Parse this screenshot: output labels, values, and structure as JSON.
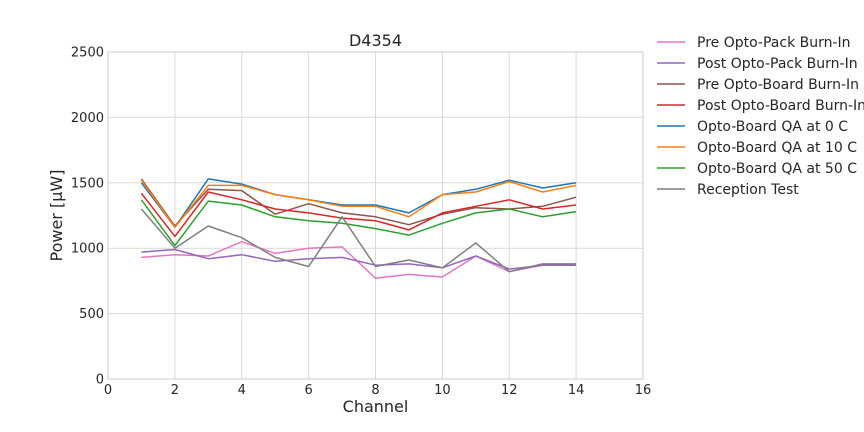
{
  "chart_data": {
    "type": "line",
    "title": "D4354",
    "xlabel": "Channel",
    "ylabel": "Power [µW]",
    "xlim": [
      0,
      16
    ],
    "ylim": [
      0,
      2500
    ],
    "xticks": [
      0,
      2,
      4,
      6,
      8,
      10,
      12,
      14,
      16
    ],
    "yticks": [
      0,
      500,
      1000,
      1500,
      2000,
      2500
    ],
    "xtick_labels": [
      "0",
      "2",
      "4",
      "6",
      "8",
      "10",
      "12",
      "14",
      "16"
    ],
    "ytick_labels": [
      "0",
      "500",
      "1000",
      "1500",
      "2000",
      "2500"
    ],
    "grid": true,
    "legend_position": "outside-right",
    "x": [
      1,
      2,
      3,
      4,
      5,
      6,
      7,
      8,
      9,
      10,
      11,
      12,
      13,
      14
    ],
    "series": [
      {
        "name": "Pre Opto-Pack Burn-In",
        "color": "#e377c2",
        "values": [
          930,
          950,
          940,
          1050,
          960,
          1000,
          1010,
          770,
          800,
          780,
          940,
          820,
          870,
          870
        ]
      },
      {
        "name": "Post Opto-Pack Burn-In",
        "color": "#9467bd",
        "values": [
          970,
          990,
          920,
          950,
          900,
          920,
          930,
          870,
          880,
          850,
          940,
          840,
          870,
          870
        ]
      },
      {
        "name": "Pre Opto-Board Burn-In",
        "color": "#8c564b",
        "values": [
          1530,
          1170,
          1450,
          1440,
          1260,
          1340,
          1270,
          1240,
          1180,
          1260,
          1310,
          1300,
          1320,
          1390
        ]
      },
      {
        "name": "Post Opto-Board Burn-In",
        "color": "#d62728",
        "values": [
          1420,
          1090,
          1430,
          1370,
          1300,
          1270,
          1230,
          1210,
          1140,
          1270,
          1320,
          1370,
          1300,
          1330
        ]
      },
      {
        "name": "Opto-Board QA at 0 C",
        "color": "#1f77b4",
        "values": [
          1500,
          1160,
          1530,
          1490,
          1410,
          1370,
          1330,
          1330,
          1270,
          1410,
          1450,
          1520,
          1460,
          1500
        ]
      },
      {
        "name": "Opto-Board QA at 10 C",
        "color": "#ff7f0e",
        "values": [
          1520,
          1160,
          1480,
          1480,
          1410,
          1370,
          1320,
          1320,
          1240,
          1410,
          1430,
          1510,
          1430,
          1480
        ]
      },
      {
        "name": "Opto-Board QA at 50 C",
        "color": "#2ca02c",
        "values": [
          1370,
          1020,
          1360,
          1330,
          1240,
          1210,
          1190,
          1150,
          1100,
          1190,
          1270,
          1300,
          1240,
          1280
        ]
      },
      {
        "name": "Reception Test",
        "color": "#7f7f7f",
        "values": [
          1300,
          1000,
          1170,
          1080,
          930,
          860,
          1240,
          860,
          910,
          850,
          1040,
          820,
          880,
          880
        ]
      }
    ]
  }
}
